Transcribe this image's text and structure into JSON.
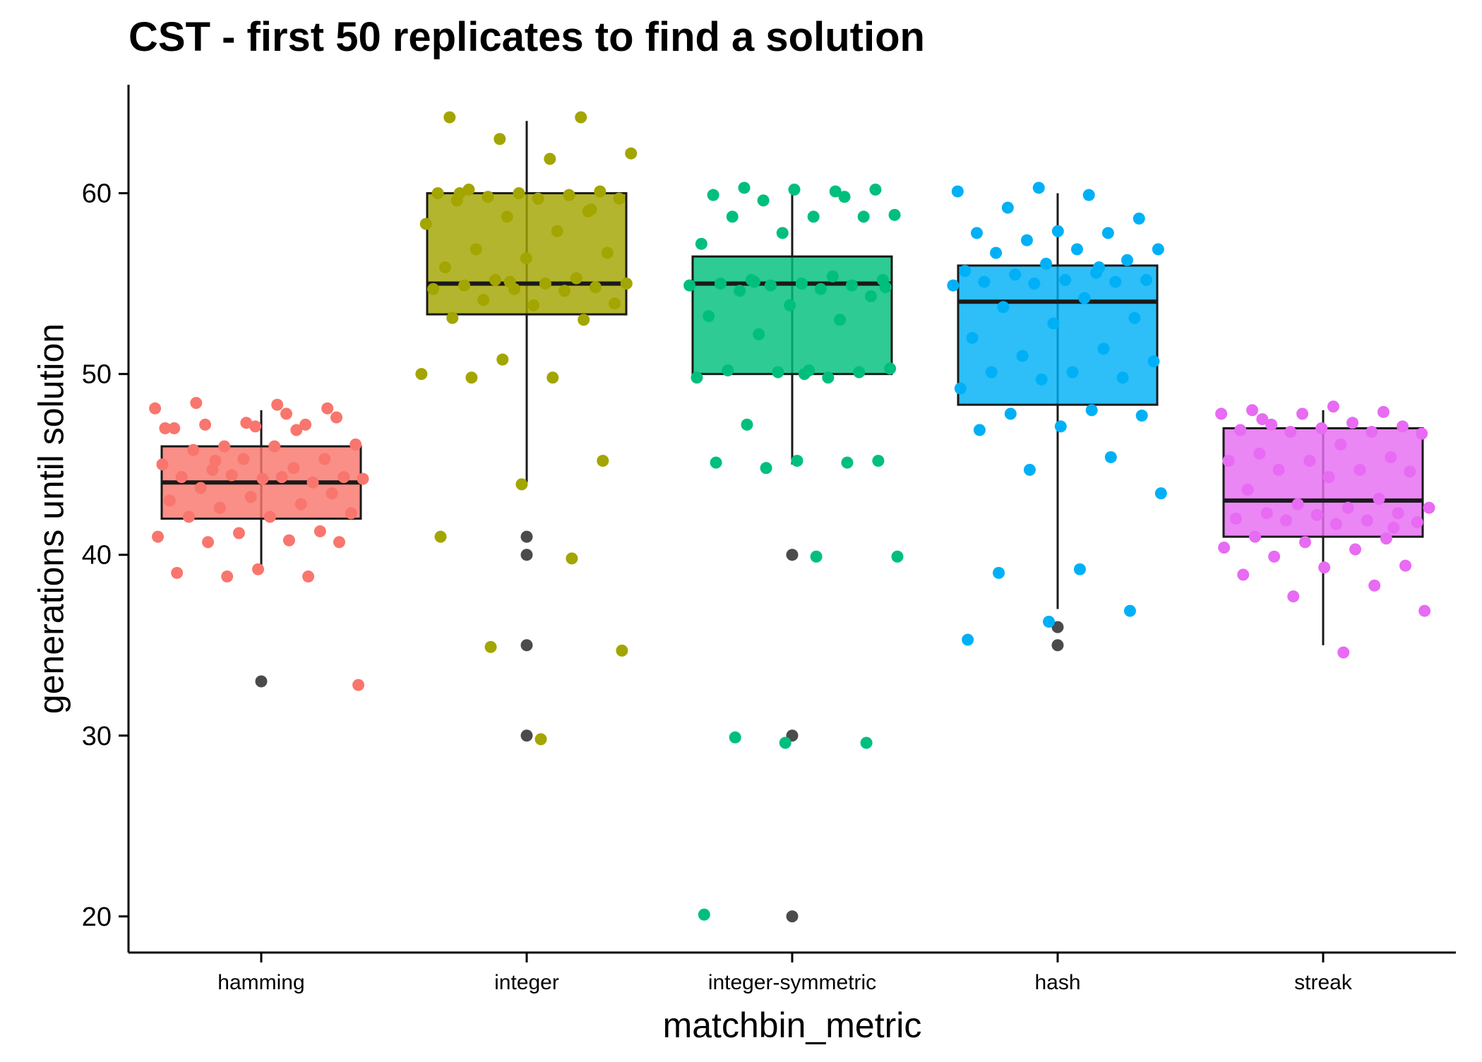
{
  "chart_data": {
    "type": "box",
    "title": "CST - first 50 replicates to find a solution",
    "xlabel": "matchbin_metric",
    "ylabel": "generations until solution",
    "ylim": [
      18,
      66
    ],
    "yticks": [
      20,
      30,
      40,
      50,
      60
    ],
    "grid": false,
    "legend": "none",
    "categories": [
      "hamming",
      "integer",
      "integer-symmetric",
      "hash",
      "streak"
    ],
    "series": [
      {
        "category": "hamming",
        "color": "#F8766D",
        "box": {
          "q1": 42,
          "median": 44,
          "q3": 46,
          "whisker_low": 39,
          "whisker_high": 48
        },
        "outliers": [
          33
        ],
        "points": [
          48.1,
          47.8,
          47.2,
          47.6,
          47.1,
          47.0,
          47.2,
          46.0,
          46.1,
          46.0,
          45.8,
          45.3,
          45.3,
          45.0,
          44.8,
          44.7,
          44.3,
          44.2,
          44.3,
          44.0,
          44.4,
          44.2,
          44.3,
          43.7,
          43.4,
          43.2,
          43.0,
          42.8,
          42.6,
          42.3,
          42.1,
          42.1,
          41.3,
          41.2,
          41.0,
          40.8,
          40.7,
          40.7,
          39.2,
          39.0,
          38.8,
          38.8,
          32.8,
          48.3,
          48.4,
          48.1,
          47.3,
          47.0,
          46.9,
          45.2
        ]
      },
      {
        "category": "integer",
        "color": "#A3A500",
        "box": {
          "q1": 53.3,
          "median": 55,
          "q3": 60,
          "whisker_low": 44,
          "whisker_high": 64
        },
        "outliers": [
          41,
          40,
          35,
          30
        ],
        "points": [
          64.2,
          64.2,
          63.0,
          62.2,
          61.9,
          60.2,
          60.1,
          60.0,
          60.0,
          59.9,
          59.8,
          59.7,
          59.7,
          59.6,
          59.0,
          58.7,
          58.3,
          57.9,
          56.9,
          56.7,
          56.4,
          55.9,
          55.3,
          55.2,
          55.0,
          55.0,
          54.9,
          54.8,
          54.7,
          54.7,
          54.6,
          54.1,
          53.9,
          53.8,
          53.1,
          53.0,
          50.8,
          50.0,
          49.8,
          49.8,
          45.2,
          43.9,
          41.0,
          39.8,
          34.9,
          34.7,
          29.8,
          60.0,
          59.1,
          55.1
        ]
      },
      {
        "category": "integer-symmetric",
        "color": "#00BF7D",
        "box": {
          "q1": 50,
          "median": 55,
          "q3": 56.5,
          "whisker_low": 45,
          "whisker_high": 60
        },
        "outliers": [
          40,
          30,
          20
        ],
        "points": [
          60.3,
          60.2,
          60.2,
          59.9,
          59.8,
          59.6,
          58.8,
          58.7,
          58.7,
          58.7,
          57.8,
          57.2,
          55.4,
          55.2,
          55.2,
          55.0,
          55.0,
          54.9,
          54.9,
          54.9,
          54.7,
          54.6,
          54.3,
          53.8,
          53.2,
          53.0,
          52.2,
          50.3,
          50.2,
          50.2,
          50.1,
          50.1,
          49.8,
          49.8,
          47.2,
          45.2,
          45.2,
          45.1,
          45.1,
          44.8,
          39.9,
          39.9,
          29.9,
          29.6,
          29.6,
          20.1,
          60.1,
          55.1,
          54.8,
          50.0
        ]
      },
      {
        "category": "hash",
        "color": "#00B0F6",
        "box": {
          "q1": 48.3,
          "median": 54,
          "q3": 56,
          "whisker_low": 37,
          "whisker_high": 60
        },
        "outliers": [
          36,
          35
        ],
        "points": [
          60.3,
          60.1,
          59.9,
          59.2,
          58.6,
          57.9,
          57.8,
          57.8,
          57.4,
          56.9,
          56.9,
          56.7,
          56.3,
          56.1,
          55.7,
          55.6,
          55.5,
          55.2,
          55.2,
          55.1,
          55.1,
          55.0,
          54.9,
          54.2,
          53.7,
          53.1,
          52.8,
          52.0,
          51.4,
          51.0,
          50.7,
          50.1,
          50.1,
          49.8,
          49.7,
          49.2,
          48.0,
          47.8,
          47.7,
          47.1,
          46.9,
          45.4,
          44.7,
          43.4,
          39.2,
          39.0,
          36.9,
          36.3,
          35.3,
          55.9
        ]
      },
      {
        "category": "streak",
        "color": "#E76BF3",
        "box": {
          "q1": 41,
          "median": 43,
          "q3": 47,
          "whisker_low": 35,
          "whisker_high": 48
        },
        "outliers": [],
        "points": [
          48.2,
          48.0,
          47.9,
          47.8,
          47.8,
          47.3,
          47.2,
          47.1,
          47.0,
          46.9,
          46.8,
          46.8,
          46.7,
          46.1,
          45.6,
          45.4,
          45.2,
          45.2,
          44.7,
          44.7,
          44.6,
          44.3,
          43.6,
          43.1,
          42.8,
          42.6,
          42.6,
          42.3,
          42.3,
          42.2,
          42.0,
          41.9,
          41.9,
          41.8,
          41.7,
          41.0,
          40.9,
          40.7,
          40.4,
          40.3,
          39.9,
          39.4,
          39.3,
          38.9,
          38.3,
          37.7,
          36.9,
          34.6,
          47.5,
          41.5
        ]
      }
    ]
  }
}
